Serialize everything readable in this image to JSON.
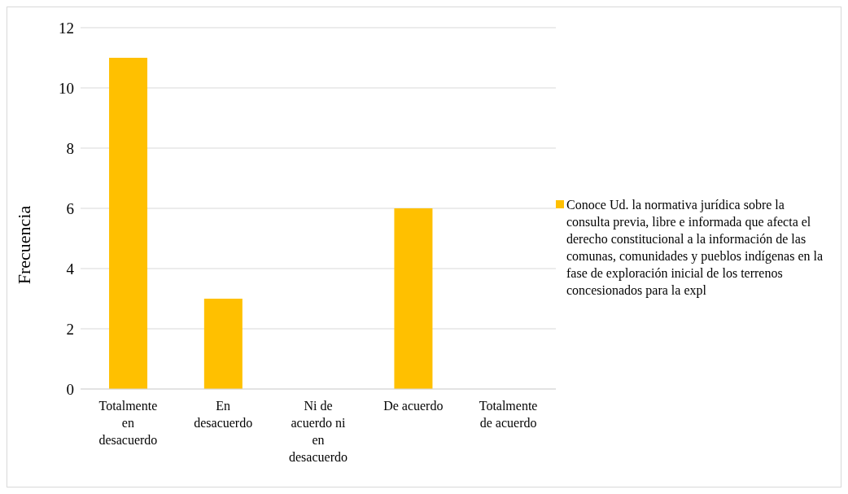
{
  "chart_data": {
    "type": "bar",
    "ylabel": "Frecuencia",
    "categories": [
      "Totalmente en desacuerdo",
      "En desacuerdo",
      "Ni de acuerdo ni en desacuerdo",
      "De acuerdo",
      "Totalmente de acuerdo"
    ],
    "series": [
      {
        "name": "Conoce Ud. la normativa jurídica sobre la consulta previa, libre e informada que afecta el derecho constitucional a la información de las comunas, comunidades y pueblos indígenas en la fase de exploración inicial de los terrenos concesionados para la expl",
        "color": "#ffc000",
        "values": [
          11,
          3,
          0,
          6,
          0
        ]
      }
    ],
    "ylim": [
      0,
      12
    ],
    "yticks": [
      0,
      2,
      4,
      6,
      8,
      10,
      12
    ],
    "grid": "y",
    "legend": "right"
  }
}
